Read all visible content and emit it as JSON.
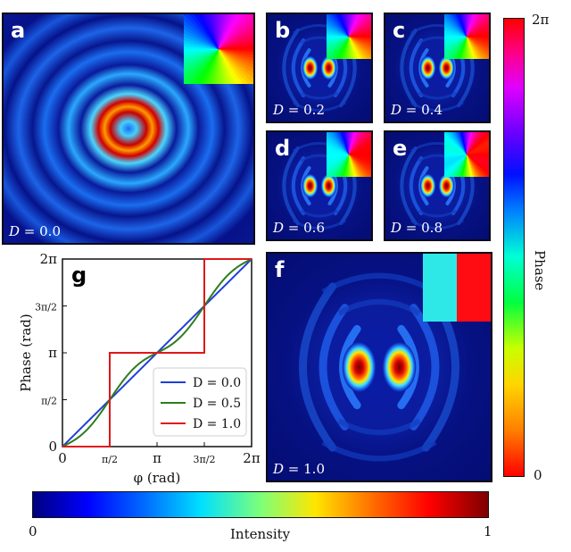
{
  "panels": {
    "a": {
      "letter": "a",
      "d_label": "D = 0.0",
      "D": 0.0
    },
    "b": {
      "letter": "b",
      "d_label": "D = 0.2",
      "D": 0.2
    },
    "c": {
      "letter": "c",
      "d_label": "D = 0.4",
      "D": 0.4
    },
    "d": {
      "letter": "d",
      "d_label": "D = 0.6",
      "D": 0.6
    },
    "e": {
      "letter": "e",
      "d_label": "D = 0.8",
      "D": 0.8
    },
    "f": {
      "letter": "f",
      "d_label": "D = 1.0",
      "D": 1.0
    }
  },
  "phase_colorbar": {
    "label": "Phase",
    "max_label": "2π",
    "min_label": "0"
  },
  "intensity_colorbar": {
    "label": "Intensity",
    "min_label": "0",
    "max_label": "1"
  },
  "colors": {
    "blue": "#1f3fd6",
    "green": "#2e7d1e",
    "red": "#e01818"
  },
  "chart_data": {
    "type": "line",
    "panel_letter": "g",
    "xlabel": "φ (rad)",
    "ylabel": "Phase (rad)",
    "xlim": [
      0,
      6.2832
    ],
    "ylim": [
      0,
      6.2832
    ],
    "xticks": [
      "0",
      "π/2",
      "π",
      "3π/2",
      "2π"
    ],
    "yticks": [
      "0",
      "π/2",
      "π",
      "3π/2",
      "2π"
    ],
    "legend_position": "lower-right",
    "series": [
      {
        "name": "D = 0.0",
        "D": 0.0,
        "color": "#1f3fd6"
      },
      {
        "name": "D = 0.5",
        "D": 0.5,
        "color": "#2e7d1e"
      },
      {
        "name": "D = 1.0",
        "D": 1.0,
        "color": "#e01818"
      }
    ]
  }
}
